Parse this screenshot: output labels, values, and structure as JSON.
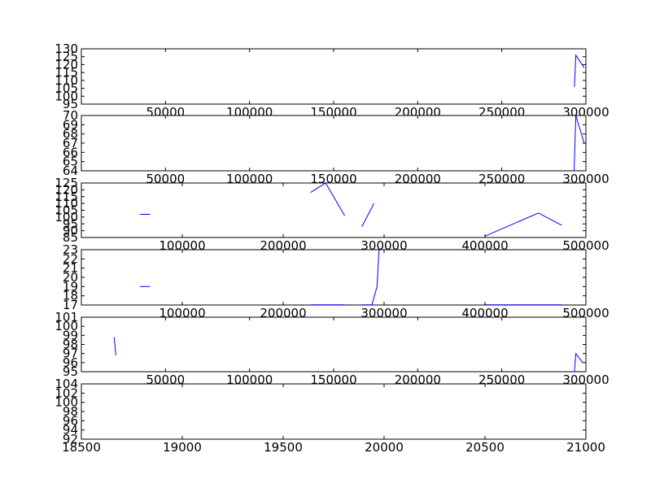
{
  "chart_data": [
    {
      "type": "line",
      "xlim": [
        0,
        300000
      ],
      "ylim": [
        95,
        130
      ],
      "xticks": [
        50000,
        100000,
        150000,
        200000,
        250000,
        300000
      ],
      "xtick_labels": [
        "50000",
        "100000",
        "150000",
        "200000",
        "250000",
        "300000"
      ],
      "yticks": [
        95,
        100,
        105,
        110,
        115,
        120,
        125,
        130
      ],
      "ytick_labels": [
        "95",
        "100",
        "105",
        "110",
        "115",
        "120",
        "125",
        "130"
      ],
      "series": [
        {
          "color": "#0000ff",
          "segments": [
            [
              [
                293200,
                106
              ],
              [
                294000,
                126
              ],
              [
                299000,
                118
              ]
            ]
          ]
        }
      ]
    },
    {
      "type": "line",
      "xlim": [
        0,
        300000
      ],
      "ylim": [
        64,
        70
      ],
      "xticks": [
        50000,
        100000,
        150000,
        200000,
        250000,
        300000
      ],
      "xtick_labels": [
        "50000",
        "100000",
        "150000",
        "200000",
        "250000",
        "300000"
      ],
      "yticks": [
        64,
        65,
        66,
        67,
        68,
        69,
        70
      ],
      "ytick_labels": [
        "64",
        "65",
        "66",
        "67",
        "68",
        "69",
        "70"
      ],
      "series": [
        {
          "color": "#0000ff",
          "segments": [
            [
              [
                293000,
                64
              ],
              [
                294000,
                70
              ],
              [
                299000,
                67
              ]
            ]
          ]
        }
      ]
    },
    {
      "type": "line",
      "xlim": [
        0,
        500000
      ],
      "ylim": [
        85,
        125
      ],
      "xticks": [
        100000,
        200000,
        300000,
        400000,
        500000
      ],
      "xtick_labels": [
        "100000",
        "200000",
        "300000",
        "400000",
        "500000"
      ],
      "yticks": [
        85,
        90,
        95,
        100,
        105,
        110,
        115,
        120,
        125
      ],
      "ytick_labels": [
        "85",
        "90",
        "95",
        "100",
        "105",
        "110",
        "115",
        "120",
        "125"
      ],
      "series": [
        {
          "color": "#0000ff",
          "segments": [
            [
              [
                58000,
                102
              ],
              [
                68000,
                102
              ]
            ],
            [
              [
                227000,
                118
              ],
              [
                242000,
                125
              ],
              [
                261000,
                101
              ]
            ],
            [
              [
                278000,
                93
              ],
              [
                290000,
                110
              ]
            ],
            [
              [
                400000,
                86
              ],
              [
                453000,
                103
              ],
              [
                476000,
                94
              ]
            ]
          ]
        }
      ]
    },
    {
      "type": "line",
      "xlim": [
        0,
        500000
      ],
      "ylim": [
        17,
        23
      ],
      "xticks": [
        100000,
        200000,
        300000,
        400000,
        500000
      ],
      "xtick_labels": [
        "100000",
        "200000",
        "300000",
        "400000",
        "500000"
      ],
      "yticks": [
        17,
        18,
        19,
        20,
        21,
        22,
        23
      ],
      "ytick_labels": [
        "17",
        "18",
        "19",
        "20",
        "21",
        "22",
        "23"
      ],
      "series": [
        {
          "color": "#0000ff",
          "segments": [
            [
              [
                58000,
                19.0
              ],
              [
                68000,
                19.0
              ]
            ],
            [
              [
                227000,
                17.02
              ],
              [
                261000,
                17.02
              ]
            ],
            [
              [
                278000,
                17.02
              ],
              [
                288000,
                17.02
              ],
              [
                293000,
                19.0
              ],
              [
                295000,
                23.0
              ]
            ],
            [
              [
                400000,
                17.02
              ],
              [
                476000,
                17.02
              ]
            ]
          ]
        }
      ]
    },
    {
      "type": "line",
      "xlim": [
        0,
        300000
      ],
      "ylim": [
        95,
        101
      ],
      "xticks": [
        50000,
        100000,
        150000,
        200000,
        250000,
        300000
      ],
      "xtick_labels": [
        "50000",
        "100000",
        "150000",
        "200000",
        "250000",
        "300000"
      ],
      "yticks": [
        95,
        96,
        97,
        98,
        99,
        100,
        101
      ],
      "ytick_labels": [
        "95",
        "96",
        "97",
        "98",
        "99",
        "100",
        "101"
      ],
      "series": [
        {
          "color": "#0000ff",
          "segments": [
            [
              [
                19500,
                98.8
              ],
              [
                20500,
                96.8
              ]
            ],
            [
              [
                293200,
                95.0
              ],
              [
                294000,
                97.0
              ],
              [
                298000,
                96.0
              ]
            ]
          ]
        }
      ]
    },
    {
      "type": "line",
      "xlim": [
        18500,
        21000
      ],
      "ylim": [
        92,
        104
      ],
      "xticks": [
        18500,
        19000,
        19500,
        20000,
        20500,
        21000
      ],
      "xtick_labels": [
        "18500",
        "19000",
        "19500",
        "20000",
        "20500",
        "21000"
      ],
      "yticks": [
        92,
        94,
        96,
        98,
        100,
        102,
        104
      ],
      "ytick_labels": [
        "92",
        "94",
        "96",
        "98",
        "100",
        "102",
        "104"
      ],
      "series": []
    }
  ]
}
